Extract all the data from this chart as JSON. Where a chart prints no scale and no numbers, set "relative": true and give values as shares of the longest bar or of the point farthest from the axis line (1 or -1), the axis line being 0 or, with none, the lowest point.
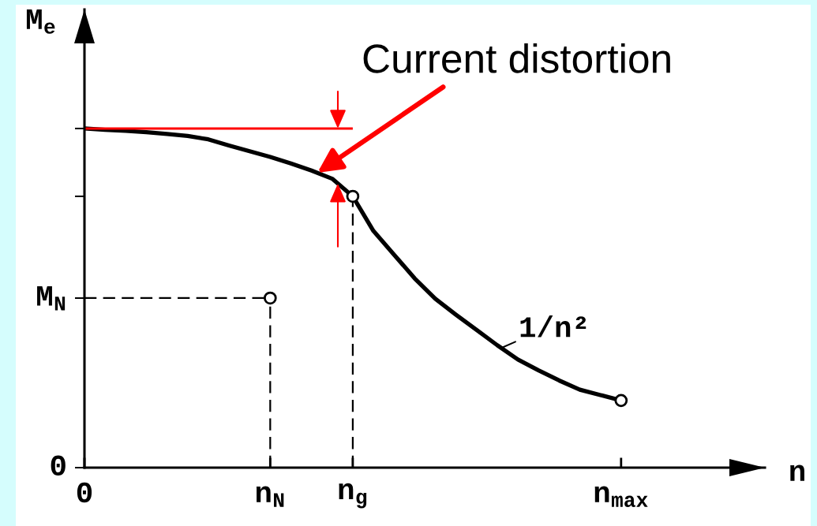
{
  "chart_data": {
    "type": "line",
    "relative": true,
    "xlabel": "n",
    "ylabel": "M$_{e}$",
    "categories": [
      "0",
      null,
      null,
      null,
      null,
      null,
      null,
      null,
      null,
      "n$_{N}$",
      null,
      null,
      null,
      "n$_{g}$",
      null,
      null,
      null,
      null,
      null,
      null,
      null,
      null,
      null,
      null,
      null,
      null,
      "n$_{max}$"
    ],
    "series": [
      {
        "color": "#000000",
        "values": [
          1,
          0.996,
          0.993,
          0.989,
          0.984,
          0.978,
          0.968,
          0.95,
          0.933,
          0.916,
          0.897,
          0.876,
          0.852,
          0.8,
          0.698,
          0.628,
          0.558,
          0.498,
          0.451,
          0.406,
          0.361,
          0.319,
          0.287,
          0.257,
          0.23,
          0.214,
          0.198
        ]
      },
      {
        "color": "#ff0000",
        "values": [
          1,
          1,
          1,
          1,
          1,
          1,
          1,
          1,
          1,
          1,
          1,
          1,
          1,
          1,
          null,
          null,
          null,
          null,
          null,
          null,
          null,
          null,
          null,
          null,
          null,
          null,
          null
        ]
      },
      {
        "color": "#000000",
        "line_style": "dashed",
        "values": [
          0.5,
          0.5,
          0.5,
          0.5,
          0.5,
          0.5,
          0.5,
          0.5,
          0.5,
          0.5,
          null,
          null,
          null,
          null,
          null,
          null,
          null,
          null,
          null,
          null,
          null,
          null,
          null,
          null,
          null,
          null,
          null
        ]
      },
      {
        "type": "lollipop",
        "color": "#000000",
        "line_style": "dashed",
        "marker": "circle",
        "values": [
          null,
          null,
          null,
          null,
          null,
          null,
          null,
          null,
          null,
          0.5,
          null,
          null,
          null,
          0.8,
          null,
          null,
          null,
          null,
          null,
          null,
          null,
          null,
          null,
          null,
          null,
          null,
          null
        ]
      },
      {
        "type": "scatter",
        "color": "#000000",
        "marker": "circle",
        "values": [
          null,
          null,
          null,
          null,
          null,
          null,
          null,
          null,
          null,
          null,
          null,
          null,
          null,
          null,
          null,
          null,
          null,
          null,
          null,
          null,
          null,
          null,
          null,
          null,
          null,
          null,
          0.198
        ]
      }
    ],
    "annotations": [
      "Current distortion",
      "1/n²",
      "0",
      {
        "text": "M$_{N}$",
        "x": "0",
        "y": 0.5
      }
    ]
  }
}
